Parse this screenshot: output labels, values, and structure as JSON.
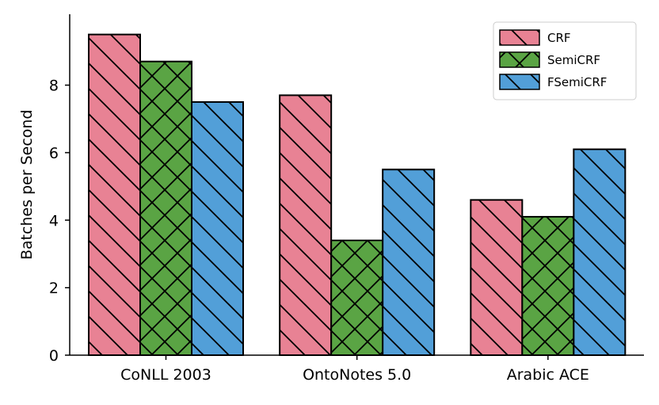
{
  "chart_data": {
    "type": "bar",
    "title": "",
    "xlabel": "",
    "ylabel": "Batches per Second",
    "categories": [
      "CoNLL 2003",
      "OntoNotes 5.0",
      "Arabic ACE"
    ],
    "series": [
      {
        "name": "CRF",
        "values": [
          9.5,
          7.7,
          4.6
        ],
        "color": "#e88294",
        "hatch": "\\"
      },
      {
        "name": "SemiCRF",
        "values": [
          8.7,
          3.4,
          4.1
        ],
        "color": "#5aa444",
        "hatch": "x"
      },
      {
        "name": "FSemiCRF",
        "values": [
          7.5,
          5.5,
          6.1
        ],
        "color": "#529fd8",
        "hatch": "\\"
      }
    ],
    "ylim": [
      0,
      10.1
    ],
    "yticks": [
      0,
      2,
      4,
      6,
      8
    ],
    "grid": false,
    "legend_position": "top-right"
  }
}
